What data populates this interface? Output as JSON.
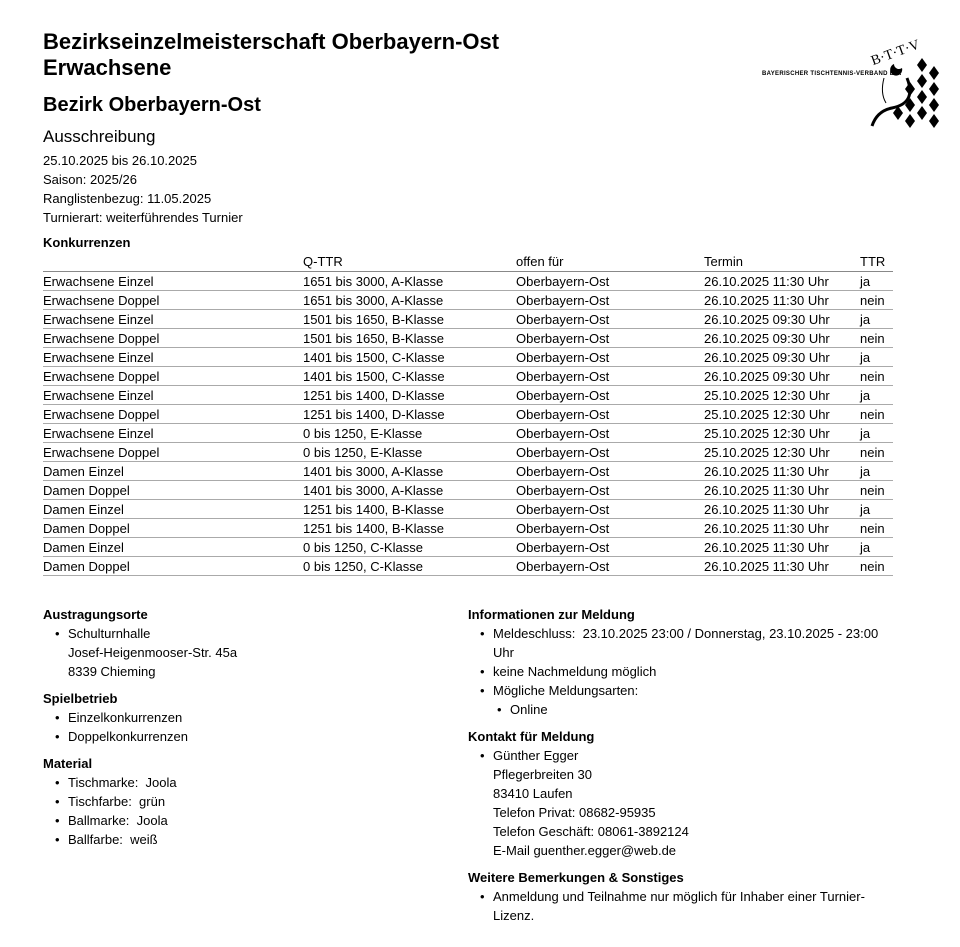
{
  "header": {
    "title_line1": "Bezirkseinzelmeisterschaft Oberbayern-Ost",
    "title_line2": "Erwachsene",
    "district": "Bezirk Oberbayern-Ost",
    "subtitle": "Ausschreibung",
    "meta": [
      "25.10.2025 bis 26.10.2025",
      "Saison: 2025/26",
      "Ranglistenbezug: 11.05.2025",
      "Turnierart: weiterführendes Turnier"
    ]
  },
  "logo": {
    "text": "BAYERISCHER TISCHTENNIS-VERBAND E.V.",
    "letters": "B·T·T·V"
  },
  "competitions": {
    "heading": "Konkurrenzen",
    "columns": [
      "",
      "Q-TTR",
      "offen für",
      "Termin",
      "TTR"
    ],
    "rows": [
      [
        "Erwachsene Einzel",
        "1651 bis 3000, A-Klasse",
        "Oberbayern-Ost",
        "26.10.2025 11:30 Uhr",
        "ja"
      ],
      [
        "Erwachsene Doppel",
        "1651 bis 3000, A-Klasse",
        "Oberbayern-Ost",
        "26.10.2025 11:30 Uhr",
        "nein"
      ],
      [
        "Erwachsene Einzel",
        "1501 bis 1650, B-Klasse",
        "Oberbayern-Ost",
        "26.10.2025 09:30 Uhr",
        "ja"
      ],
      [
        "Erwachsene Doppel",
        "1501 bis 1650, B-Klasse",
        "Oberbayern-Ost",
        "26.10.2025 09:30 Uhr",
        "nein"
      ],
      [
        "Erwachsene Einzel",
        "1401 bis 1500, C-Klasse",
        "Oberbayern-Ost",
        "26.10.2025 09:30 Uhr",
        "ja"
      ],
      [
        "Erwachsene Doppel",
        "1401 bis 1500, C-Klasse",
        "Oberbayern-Ost",
        "26.10.2025 09:30 Uhr",
        "nein"
      ],
      [
        "Erwachsene Einzel",
        "1251 bis 1400, D-Klasse",
        "Oberbayern-Ost",
        "25.10.2025 12:30 Uhr",
        "ja"
      ],
      [
        "Erwachsene Doppel",
        "1251 bis 1400, D-Klasse",
        "Oberbayern-Ost",
        "25.10.2025 12:30 Uhr",
        "nein"
      ],
      [
        "Erwachsene Einzel",
        "0 bis 1250, E-Klasse",
        "Oberbayern-Ost",
        "25.10.2025 12:30 Uhr",
        "ja"
      ],
      [
        "Erwachsene Doppel",
        "0 bis 1250, E-Klasse",
        "Oberbayern-Ost",
        "25.10.2025 12:30 Uhr",
        "nein"
      ],
      [
        "Damen Einzel",
        "1401 bis 3000, A-Klasse",
        "Oberbayern-Ost",
        "26.10.2025 11:30 Uhr",
        "ja"
      ],
      [
        "Damen Doppel",
        "1401 bis 3000, A-Klasse",
        "Oberbayern-Ost",
        "26.10.2025 11:30 Uhr",
        "nein"
      ],
      [
        "Damen Einzel",
        "1251 bis 1400, B-Klasse",
        "Oberbayern-Ost",
        "26.10.2025 11:30 Uhr",
        "ja"
      ],
      [
        "Damen Doppel",
        "1251 bis 1400, B-Klasse",
        "Oberbayern-Ost",
        "26.10.2025 11:30 Uhr",
        "nein"
      ],
      [
        "Damen Einzel",
        "0 bis 1250, C-Klasse",
        "Oberbayern-Ost",
        "26.10.2025 11:30 Uhr",
        "ja"
      ],
      [
        "Damen Doppel",
        "0 bis 1250, C-Klasse",
        "Oberbayern-Ost",
        "26.10.2025 11:30 Uhr",
        "nein"
      ]
    ]
  },
  "venues": {
    "heading": "Austragungsorte",
    "items": [
      {
        "name": "Schulturnhalle",
        "street": "Josef-Heigenmooser-Str. 45a",
        "city": "8339 Chieming"
      }
    ]
  },
  "play": {
    "heading": "Spielbetrieb",
    "items": [
      "Einzelkonkurrenzen",
      "Doppelkonkurrenzen"
    ]
  },
  "material": {
    "heading": "Material",
    "items": [
      "Tischmarke:  Joola",
      "Tischfarbe:  grün",
      "Ballmarke:  Joola",
      "Ballfarbe:  weiß"
    ]
  },
  "registration": {
    "heading": "Informationen zur Meldung",
    "deadline": "Meldeschluss:  23.10.2025 23:00 / Donnerstag, 23.10.2025 - 23:00 Uhr",
    "late": "keine Nachmeldung möglich",
    "types_label": "Mögliche Meldungsarten:",
    "types": [
      "Online"
    ]
  },
  "contact": {
    "heading": "Kontakt für Meldung",
    "lines": [
      "Günther Egger",
      "Pflegerbreiten 30",
      "83410 Laufen",
      "Telefon Privat: 08682-95935",
      "Telefon Geschäft: 08061-3892124",
      "E-Mail guenther.egger@web.de"
    ]
  },
  "remarks": {
    "heading": "Weitere Bemerkungen & Sonstiges",
    "items": [
      "Anmeldung und Teilnahme nur möglich für Inhaber einer Turnier-Lizenz."
    ]
  }
}
